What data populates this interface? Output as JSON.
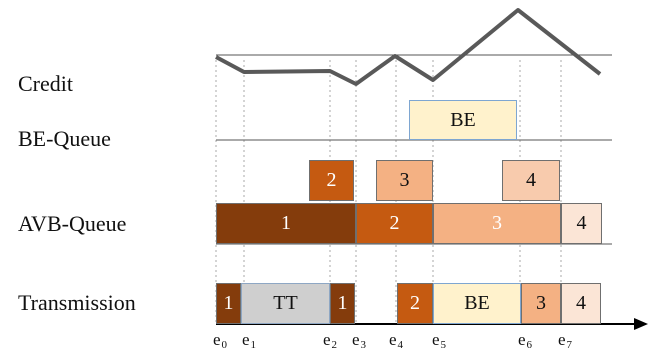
{
  "rows": {
    "credit": "Credit",
    "be_queue": "BE-Queue",
    "avb_queue": "AVB-Queue",
    "transmission": "Transmission"
  },
  "colors": {
    "frame1": "#843c0c",
    "frame2": "#c55a11",
    "frame3": "#f4b183",
    "frame3_light": "#f8cbad",
    "frame4": "#fbe5d6",
    "be": "#fff2cc",
    "be_border": "#7ea6d1",
    "tt": "#cfcfcf",
    "credit_line": "#595959",
    "rule": "#555555",
    "guide": "#aaaaaa"
  },
  "be_queue": {
    "label": "BE"
  },
  "avb_waiting": [
    {
      "label": "2"
    },
    {
      "label": "3"
    },
    {
      "label": "4"
    }
  ],
  "avb_queue": [
    {
      "label": "1"
    },
    {
      "label": "2"
    },
    {
      "label": "3"
    },
    {
      "label": "4"
    }
  ],
  "transmission": [
    {
      "label": "1"
    },
    {
      "label": "TT"
    },
    {
      "label": "1"
    },
    {
      "label": "2"
    },
    {
      "label": "BE"
    },
    {
      "label": "3"
    },
    {
      "label": "4"
    }
  ],
  "events": [
    {
      "base": "e",
      "sub": "0"
    },
    {
      "base": "e",
      "sub": "1"
    },
    {
      "base": "e",
      "sub": "2"
    },
    {
      "base": "e",
      "sub": "3"
    },
    {
      "base": "e",
      "sub": "4"
    },
    {
      "base": "e",
      "sub": "5"
    },
    {
      "base": "e",
      "sub": "6"
    },
    {
      "base": "e",
      "sub": "7"
    }
  ]
}
